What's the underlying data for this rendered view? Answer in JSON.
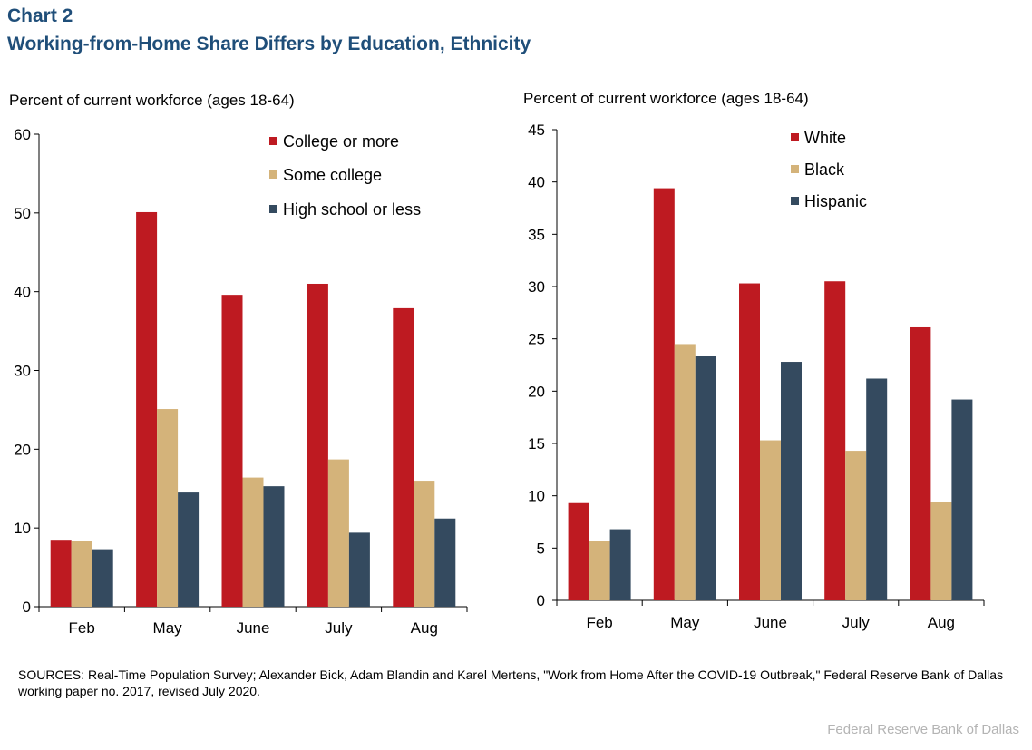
{
  "header": {
    "chart_label": "Chart 2",
    "title": "Working-from-Home Share Differs by Education, Ethnicity"
  },
  "chart_data": [
    {
      "type": "bar",
      "ylabel": "Percent of current workforce (ages 18-64)",
      "xlabel": "",
      "ylim": [
        0,
        60
      ],
      "yticks": [
        "0",
        "10",
        "20",
        "30",
        "40",
        "50",
        "60"
      ],
      "categories": [
        "Feb",
        "May",
        "June",
        "July",
        "Aug"
      ],
      "legend_position": "top-right",
      "series": [
        {
          "name": "College or more",
          "color": "#be1a21",
          "values": [
            8.5,
            50.1,
            39.6,
            41.0,
            37.9
          ]
        },
        {
          "name": "Some college",
          "color": "#d4b37a",
          "values": [
            8.4,
            25.1,
            16.4,
            18.7,
            16.0
          ]
        },
        {
          "name": "High school or less",
          "color": "#344a5f",
          "values": [
            7.3,
            14.5,
            15.3,
            9.4,
            11.2
          ]
        }
      ]
    },
    {
      "type": "bar",
      "ylabel": "Percent of current workforce (ages 18-64)",
      "xlabel": "",
      "ylim": [
        0,
        45
      ],
      "yticks": [
        "0",
        "5",
        "10",
        "15",
        "20",
        "25",
        "30",
        "35",
        "40",
        "45"
      ],
      "categories": [
        "Feb",
        "May",
        "June",
        "July",
        "Aug"
      ],
      "legend_position": "top-right",
      "series": [
        {
          "name": "White",
          "color": "#be1a21",
          "values": [
            9.3,
            39.4,
            30.3,
            30.5,
            26.1
          ]
        },
        {
          "name": "Black",
          "color": "#d4b37a",
          "values": [
            5.7,
            24.5,
            15.3,
            14.3,
            9.4
          ]
        },
        {
          "name": "Hispanic",
          "color": "#344a5f",
          "values": [
            6.8,
            23.4,
            22.8,
            21.2,
            19.2
          ]
        }
      ]
    }
  ],
  "footer": {
    "sources": "SOURCES: Real-Time Population Survey; Alexander Bick, Adam Blandin and Karel Mertens, \"Work from Home After the COVID-19 Outbreak,\" Federal Reserve Bank of Dallas working paper no. 2017, revised July 2020.",
    "credit": "Federal Reserve Bank of Dallas"
  }
}
